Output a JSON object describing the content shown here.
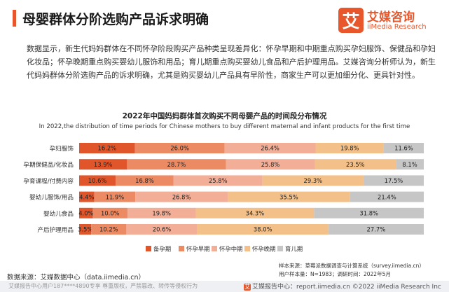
{
  "header": {
    "title": "母婴群体分阶选购产品诉求明确",
    "logo_mark": "艾",
    "logo_cn": "艾媒咨询",
    "logo_en": "iiMedia Research"
  },
  "intro": "数据显示，新生代妈妈群体在不同怀孕阶段购买产品种类呈现差异化：怀孕早期和中期重点购买孕妇服饰、保健品和孕妇化妆品；怀孕晚期重点购买婴幼儿服饰和用品；育儿期重点购买婴幼儿食品和产后护理用品。艾媒咨询分析师认为，新生代妈妈群体分阶选购产品的诉求明确，尤其是购买婴幼儿产品具有早阶性，商家生产可以更加细分化、更具针对性。",
  "chart_data": {
    "type": "bar",
    "orientation": "horizontal",
    "stacked": true,
    "title": "2022年中国妈妈群体首次购买不同母婴产品的时间段分布情况",
    "subtitle": "In 2022,the distribution of time periods for Chinese mothers to buy different maternal and infant products for the first time",
    "categories": [
      "孕妇服饰",
      "孕期保健品/化妆品",
      "孕育课程/付费内容",
      "婴幼儿服饰/用品",
      "婴幼儿食品",
      "产后护理用品"
    ],
    "series": [
      {
        "name": "备孕期",
        "color": "#e0552a",
        "values": [
          16.2,
          13.9,
          10.6,
          4.4,
          4.0,
          3.5
        ]
      },
      {
        "name": "怀孕早期",
        "color": "#ec8a63",
        "values": [
          26.0,
          28.7,
          16.8,
          11.9,
          10.0,
          10.2
        ]
      },
      {
        "name": "怀孕中期",
        "color": "#f3ae97",
        "values": [
          26.4,
          25.8,
          25.8,
          26.8,
          19.8,
          20.6
        ]
      },
      {
        "name": "怀孕晚期",
        "color": "#f4c089",
        "values": [
          19.8,
          23.5,
          29.3,
          35.5,
          34.3,
          38.0
        ]
      },
      {
        "name": "育儿期",
        "color": "#c6c6c6",
        "values": [
          11.6,
          8.1,
          17.5,
          21.4,
          31.8,
          27.7
        ]
      }
    ],
    "value_format": "%",
    "legend_position": "bottom",
    "grid": false
  },
  "footer": {
    "source": "数据来源：艾媒数据中心（data.iimedia.cn）",
    "sample_source": "样本来源：草莓派数据调查与计算系统（survey.iimedia.cn）",
    "sample_info": "用户样本量：N=1983；调研时间：2022年5月",
    "watermark": "艾媒报告中心用户187****4890专享 尊重版权，严禁篡改、转传等侵权行为",
    "report_site": "艾媒报告中心：report.iimedia.cn ©2022  iiMedia Research  Inc"
  }
}
